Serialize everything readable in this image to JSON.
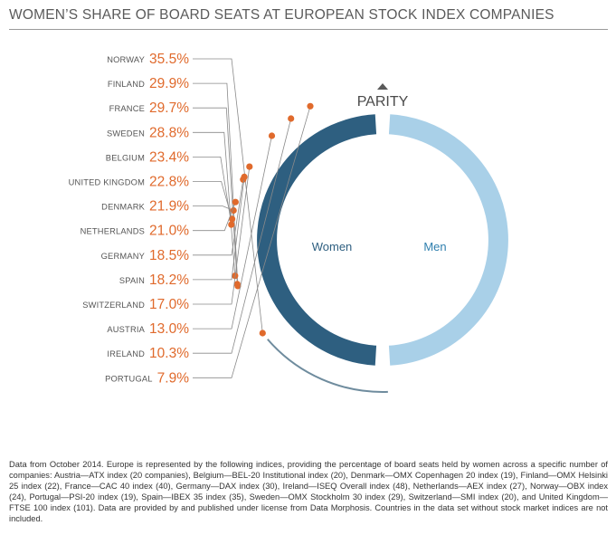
{
  "title": "WOMEN’S SHARE OF BOARD SEATS AT EUROPEAN STOCK INDEX COMPANIES",
  "parity_label": "PARITY",
  "women_label": "Women",
  "men_label": "Men",
  "note": "Data from October 2014. Europe is represented by the following indices, providing the percentage of board seats held by women across a specific number of companies: Austria—ATX index (20 companies), Belgium—BEL-20 Institutional index (20), Denmark—OMX Copenhagen 20 index (19), Finland—OMX Helsinki 25 index (22), France—CAC 40 index (40), Germany—DAX index (30), Ireland—ISEQ Overall index (48), Netherlands—AEX index (27), Norway—OBX index (24), Portugal—PSI-20 index (19), Spain—IBEX 35 index (35), Sweden—OMX Stockholm 30 index (29), Switzerland—SMI index (20), and United Kingdom—FTSE 100 index (101). Data are provided by and published under license from Data Morphosis. Countries in the data set without stock market indices are not included.",
  "colors": {
    "women": "#2e5f80",
    "men": "#a9d0e8",
    "dot": "#e06a2c",
    "value": "#e06a2c",
    "arc": "#6f8c9e",
    "leader": "#8a8a8a",
    "country": "#555555"
  },
  "chart_data": {
    "type": "pie",
    "unit": "%",
    "parity": 50,
    "categories": [
      "NORWAY",
      "FINLAND",
      "FRANCE",
      "SWEDEN",
      "BELGIUM",
      "UNITED KINGDOM",
      "DENMARK",
      "NETHERLANDS",
      "GERMANY",
      "SPAIN",
      "SWITZERLAND",
      "AUSTRIA",
      "IRELAND",
      "PORTUGAL"
    ],
    "values": [
      35.5,
      29.9,
      29.7,
      28.8,
      23.4,
      22.8,
      21.9,
      21.0,
      18.5,
      18.2,
      17.0,
      13.0,
      10.3,
      7.9
    ],
    "value_labels": [
      "35.5%",
      "29.9%",
      "29.7%",
      "28.8%",
      "23.4%",
      "22.8%",
      "21.9%",
      "21.0%",
      "18.5%",
      "18.2%",
      "17.0%",
      "13.0%",
      "10.3%",
      "7.9%"
    ]
  }
}
